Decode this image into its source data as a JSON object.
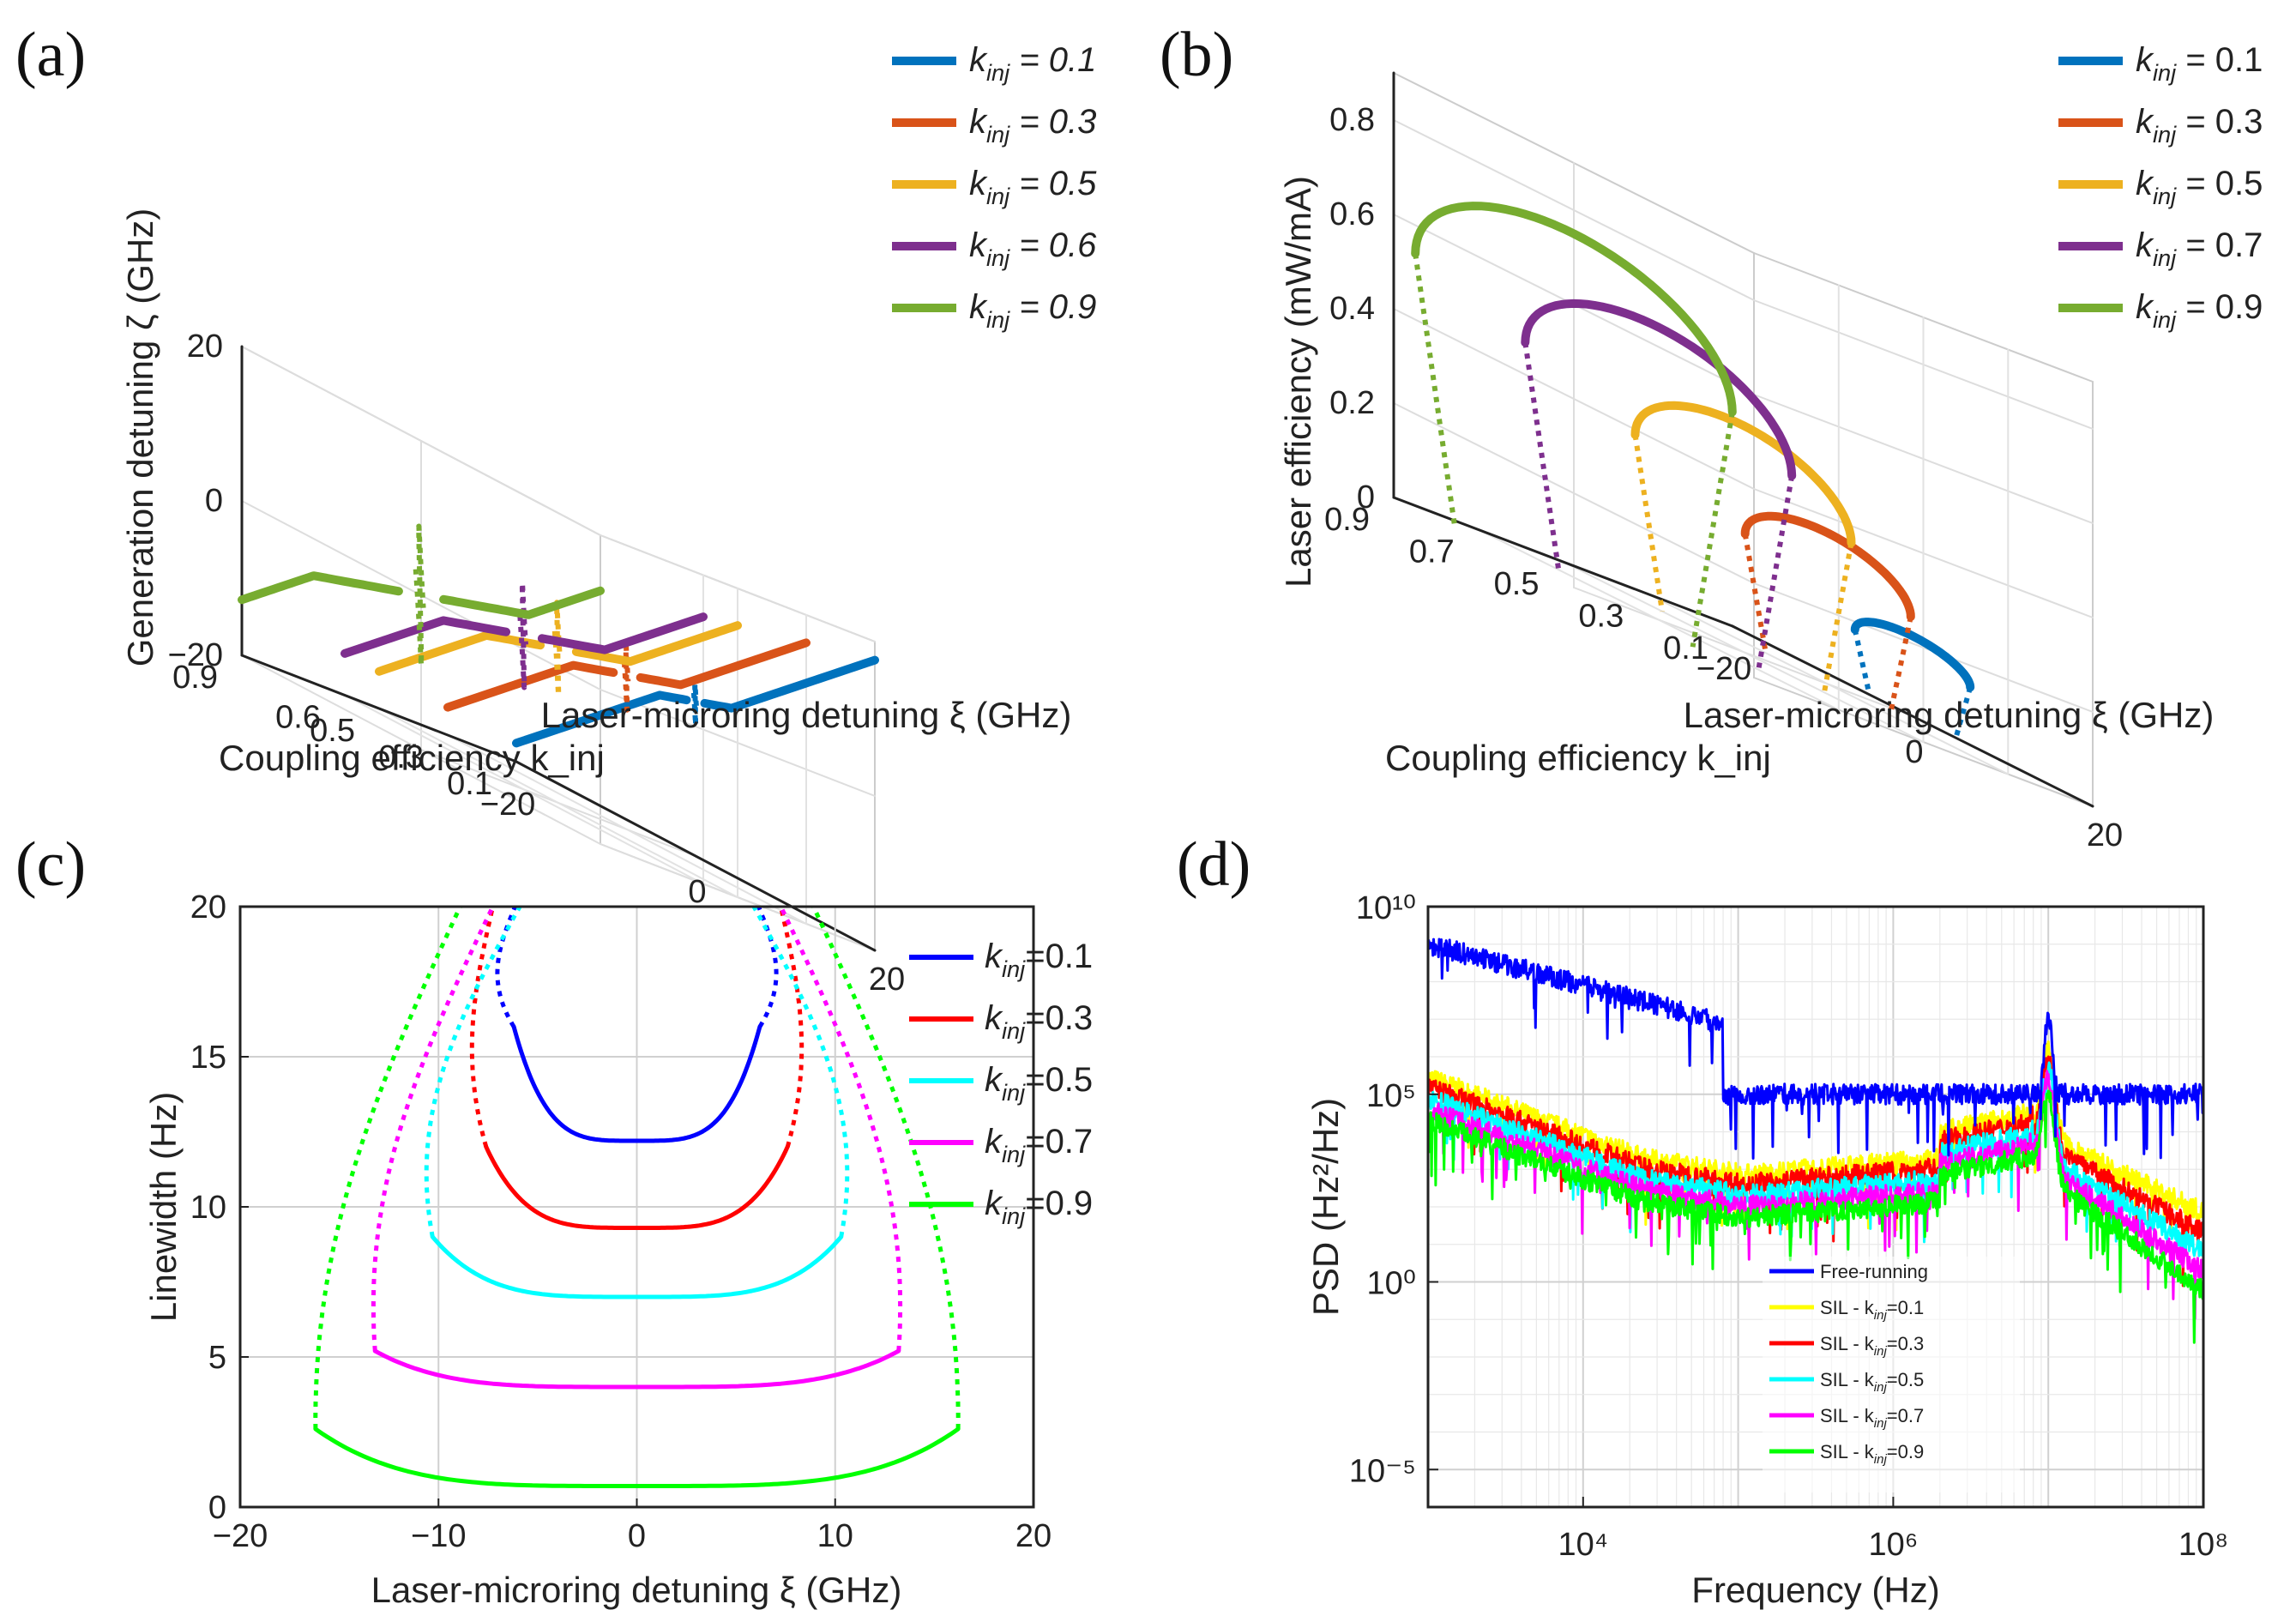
{
  "panels": {
    "a": {
      "label": "(a)"
    },
    "b": {
      "label": "(b)"
    },
    "c": {
      "label": "(c)"
    },
    "d": {
      "label": "(d)"
    }
  },
  "chart_data": [
    {
      "id": "a",
      "type": "line",
      "view": "3d",
      "xlabel": "Laser-microring detuning ξ (GHz)",
      "ylabel": "Coupling efficiency k_inj",
      "zlabel": "Generation detuning ζ (GHz)",
      "xticks": [
        "−20",
        "0",
        "20"
      ],
      "yticks": [
        "0.9",
        "0.6",
        "0.5",
        "0.3",
        "0.1"
      ],
      "zticks": [
        "−20",
        "0",
        "20"
      ],
      "legend_position": "top-right",
      "series": [
        {
          "name": "k_inj = 0.1",
          "k": 0.1,
          "color": "#0072BD"
        },
        {
          "name": "k_inj = 0.3",
          "k": 0.3,
          "color": "#D95319"
        },
        {
          "name": "k_inj = 0.5",
          "k": 0.5,
          "color": "#EDB120"
        },
        {
          "name": "k_inj = 0.6",
          "k": 0.6,
          "color": "#7E2F8E"
        },
        {
          "name": "k_inj = 0.9",
          "k": 0.9,
          "color": "#77AC30"
        }
      ],
      "legend_names": [
        "k",
        "inj",
        " = 0.1",
        " = 0.3",
        " = 0.5",
        " = 0.6",
        " = 0.9"
      ]
    },
    {
      "id": "b",
      "type": "line",
      "view": "3d",
      "xlabel": "Laser-microring detuning ξ (GHz)",
      "ylabel": "Coupling efficiency k_inj",
      "zlabel": "Laser efficiency (mW/mA)",
      "xticks": [
        "−20",
        "0",
        "20"
      ],
      "yticks": [
        "0.9",
        "0.7",
        "0.5",
        "0.3",
        "0.1"
      ],
      "zticks": [
        "0",
        "0.2",
        "0.4",
        "0.6",
        "0.8"
      ],
      "legend_position": "top-right",
      "series": [
        {
          "name": "k_inj = 0.1",
          "k": 0.1,
          "color": "#0072BD",
          "peak": 0.17
        },
        {
          "name": "k_inj = 0.3",
          "k": 0.3,
          "color": "#D95319",
          "peak": 0.32
        },
        {
          "name": "k_inj = 0.5",
          "k": 0.5,
          "color": "#EDB120",
          "peak": 0.48
        },
        {
          "name": "k_inj = 0.7",
          "k": 0.7,
          "color": "#7E2F8E",
          "peak": 0.62
        },
        {
          "name": "k_inj = 0.9",
          "k": 0.9,
          "color": "#77AC30",
          "peak": 0.75
        }
      ],
      "legend_names": [
        " = 0.1",
        " = 0.3",
        " = 0.5",
        " = 0.7",
        " = 0.9"
      ]
    },
    {
      "id": "c",
      "type": "line",
      "xlabel": "Laser-microring detuning ξ (GHz)",
      "ylabel": "Linewidth (Hz)",
      "xlim": [
        -20,
        20
      ],
      "ylim": [
        0,
        20
      ],
      "xticks": [
        "−20",
        "−10",
        "0",
        "10",
        "20"
      ],
      "yticks": [
        "0",
        "5",
        "10",
        "15",
        "20"
      ],
      "grid": true,
      "legend_position": "top-right",
      "series": [
        {
          "name": "k_inj=0.1",
          "k": 0.1,
          "color": "#0000FF",
          "min": 12.2,
          "end_x": 6.2,
          "end_y": 16.0
        },
        {
          "name": "k_inj=0.3",
          "k": 0.3,
          "color": "#FF0000",
          "min": 9.3,
          "end_x": 7.6,
          "end_y": 12.0
        },
        {
          "name": "k_inj=0.5",
          "k": 0.5,
          "color": "#00FFFF",
          "min": 7.0,
          "end_x": 10.3,
          "end_y": 9.0
        },
        {
          "name": "k_inj=0.7",
          "k": 0.7,
          "color": "#FF00FF",
          "min": 4.0,
          "end_x": 13.2,
          "end_y": 5.2
        },
        {
          "name": "k_inj=0.9",
          "k": 0.9,
          "color": "#00FF00",
          "min": 0.7,
          "end_x": 16.2,
          "end_y": 2.6
        }
      ],
      "legend_names": [
        "=0.1",
        "=0.3",
        "=0.5",
        "=0.7",
        "=0.9"
      ]
    },
    {
      "id": "d",
      "type": "line",
      "scale": "loglog",
      "xlabel": "Frequency (Hz)",
      "ylabel": "PSD (Hz²/Hz)",
      "xlim": [
        1000,
        100000000
      ],
      "ylim": [
        1e-06,
        10000000000
      ],
      "xticks": [
        "10⁴",
        "10⁶",
        "10⁸"
      ],
      "yticks": [
        "10⁻⁵",
        "10⁰",
        "10⁵",
        "10¹⁰"
      ],
      "grid": true,
      "legend_position": "bottom-center",
      "series": [
        {
          "name": "Free-running",
          "color": "#0000FF"
        },
        {
          "name": "SIL - k_inj=0.1",
          "color": "#FFFF00"
        },
        {
          "name": "SIL - k_inj=0.3",
          "color": "#FF0000"
        },
        {
          "name": "SIL - k_inj=0.5",
          "color": "#00FFFF"
        },
        {
          "name": "SIL - k_inj=0.7",
          "color": "#FF00FF"
        },
        {
          "name": "SIL - k_inj=0.9",
          "color": "#00FF00"
        }
      ],
      "legend_names": [
        "Free-running",
        "SIL - k",
        "=0.1",
        "=0.3",
        "=0.5",
        "=0.7",
        "=0.9"
      ]
    }
  ]
}
